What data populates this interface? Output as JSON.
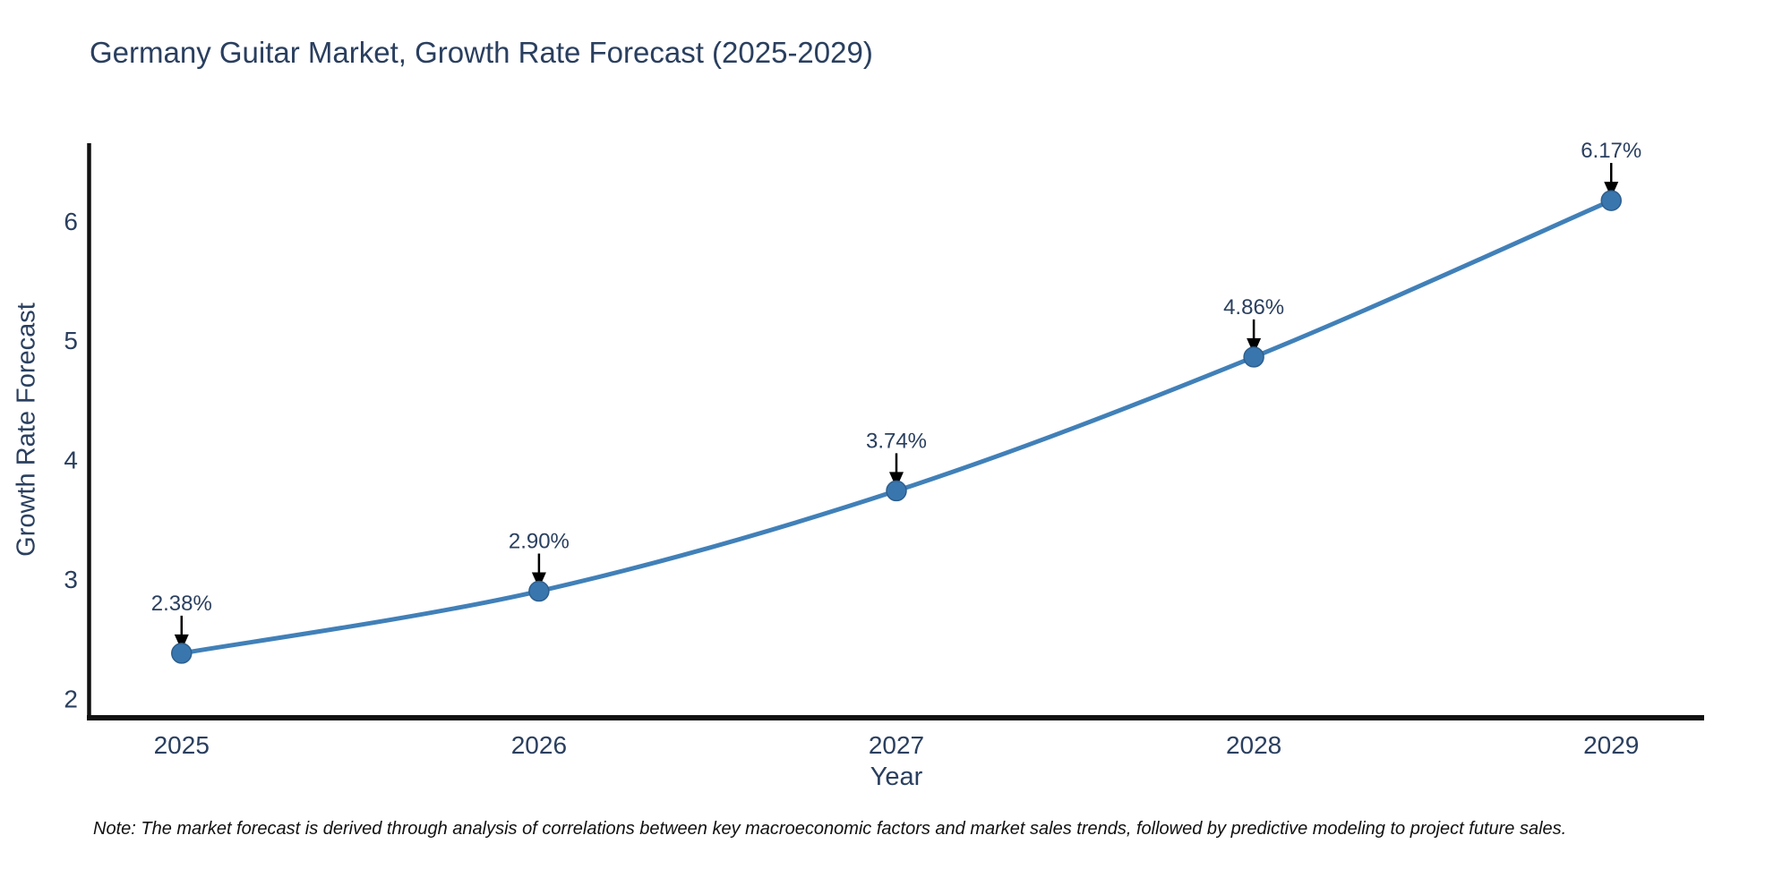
{
  "header": {
    "title": "Germany Guitar Market, Growth Rate Forecast (2025-2029)"
  },
  "chart_data": {
    "type": "line",
    "title": "Germany Guitar Market, Growth Rate Forecast (2025-2029)",
    "xlabel": "Year",
    "ylabel": "Growth Rate Forecast",
    "x": [
      2025,
      2026,
      2027,
      2028,
      2029
    ],
    "series": [
      {
        "name": "Growth Rate Forecast",
        "values": [
          2.38,
          2.9,
          3.74,
          4.86,
          6.17
        ]
      }
    ],
    "point_labels": [
      "2.38%",
      "2.90%",
      "3.74%",
      "4.86%",
      "6.17%"
    ],
    "xticks": [
      "2025",
      "2026",
      "2027",
      "2028",
      "2029"
    ],
    "yticks": [
      2,
      3,
      4,
      5,
      6
    ],
    "xlim": [
      2024.74,
      2029.26
    ],
    "ylim": [
      1.84,
      6.65
    ],
    "line_shape": "spline",
    "grid": false,
    "legend_position": "none",
    "annotations_have_arrows": true,
    "colors": {
      "background": "#ffffff",
      "line": "#4180B8",
      "marker": "#3A76AE",
      "marker_edge": "#2D5F8E",
      "axis": "#111111",
      "text": "#2a3f5f",
      "arrow": "#000000"
    }
  },
  "note": {
    "text": "Note: The market forecast is derived through analysis of correlations between key macroeconomic factors and market sales trends, followed by predictive modeling to project future sales."
  }
}
